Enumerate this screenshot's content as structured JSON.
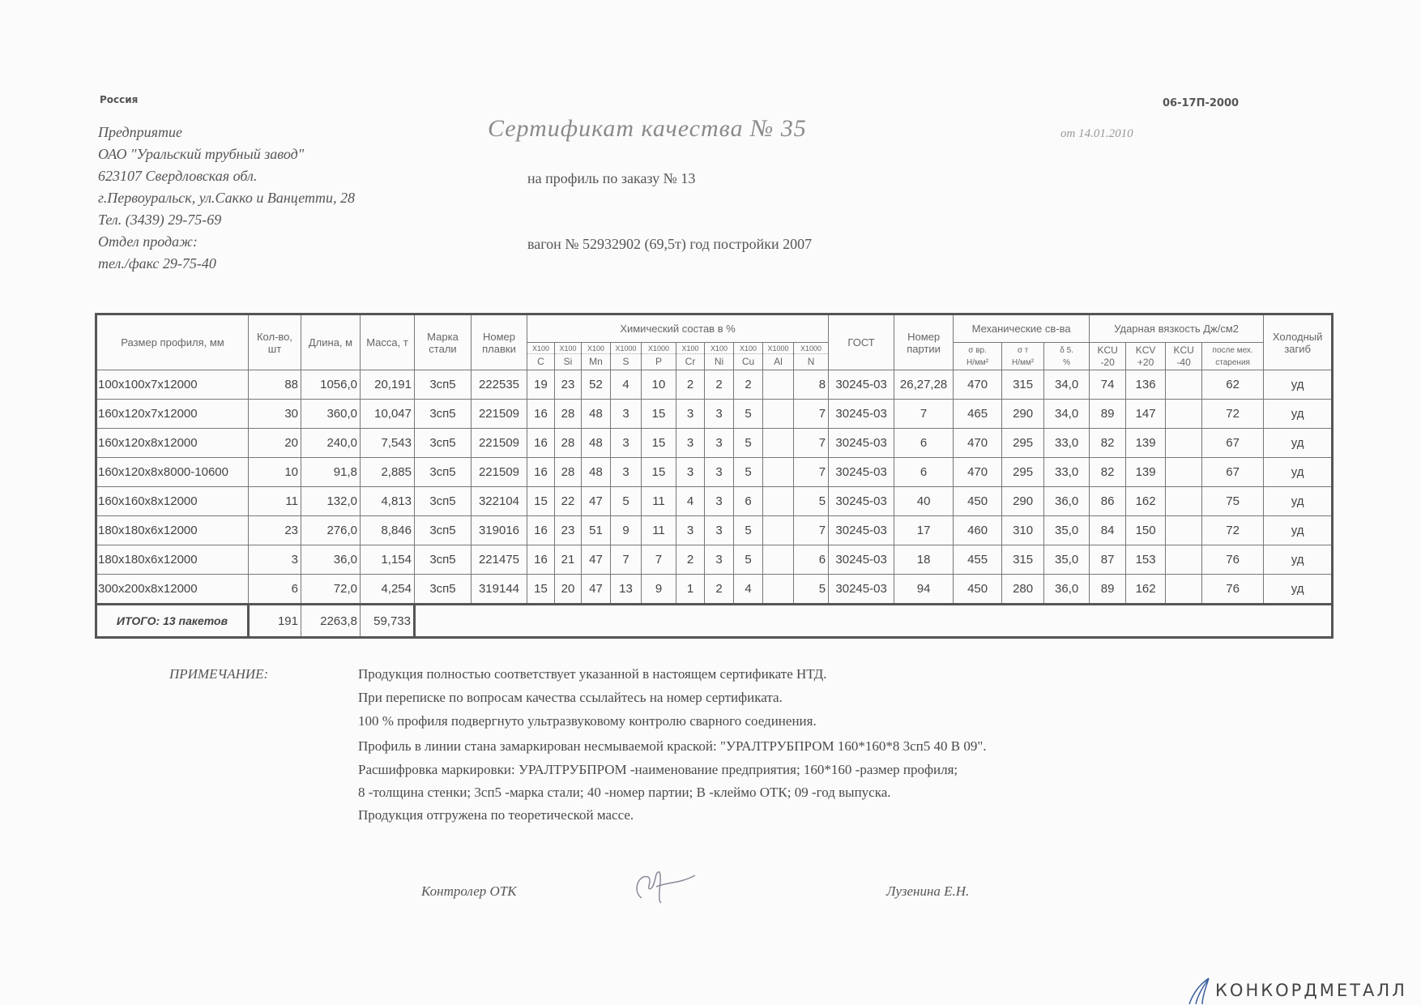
{
  "header": {
    "country": "Россия",
    "form_number": "06-17П-2000",
    "title": "Сертификат качества  № 35",
    "date": "от 14.01.2010",
    "order": "на профиль по заказу № 13",
    "wagon": "вагон № 52932902 (69,5т) год постройки 2007",
    "company_lines": [
      "Предприятие",
      "ОАО \"Уральский трубный завод\"",
      "623107 Свердловская обл.",
      "г.Первоуральск, ул.Сакко и Ванцетти, 28",
      "Тел. (3439) 29-75-69",
      "Отдел продаж:",
      "тел./факс  29-75-40"
    ]
  },
  "table": {
    "headers": {
      "size": "Размер профиля, мм",
      "qty": "Кол-во, шт",
      "length": "Длина, м",
      "mass": "Масса, т",
      "grade": "Марка стали",
      "heat": "Номер плавки",
      "chem": "Химический состав  в %",
      "gost": "ГОСТ",
      "batch": "Номер партии",
      "mech": "Механические св-ва",
      "impact": "Ударная вязкость Дж/см2",
      "bend": "Холодный загиб",
      "chem_cols": [
        {
          "mult": "X100",
          "el": "C"
        },
        {
          "mult": "X100",
          "el": "Si"
        },
        {
          "mult": "X100",
          "el": "Mn"
        },
        {
          "mult": "X1000",
          "el": "S"
        },
        {
          "mult": "X1000",
          "el": "P"
        },
        {
          "mult": "X100",
          "el": "Cr"
        },
        {
          "mult": "X100",
          "el": "Ni"
        },
        {
          "mult": "X100",
          "el": "Cu"
        },
        {
          "mult": "X1000",
          "el": "Al"
        },
        {
          "mult": "X1000",
          "el": "N"
        }
      ],
      "mech_cols": [
        {
          "top": "σ вр.",
          "bot": "Н/мм²"
        },
        {
          "top": "σ т",
          "bot": "Н/мм²"
        },
        {
          "top": "δ 5.",
          "bot": "%"
        }
      ],
      "impact_cols": [
        {
          "top": "KCU",
          "bot": "-20"
        },
        {
          "top": "KCV",
          "bot": "+20"
        },
        {
          "top": "KCU",
          "bot": "-40"
        },
        {
          "top": "после мех.",
          "bot": "старения"
        }
      ]
    },
    "rows": [
      [
        "100x100x7x12000",
        "88",
        "1056,0",
        "20,191",
        "3сп5",
        "222535",
        "19",
        "23",
        "52",
        "4",
        "10",
        "2",
        "2",
        "2",
        "",
        "8",
        "30245-03",
        "26,27,28",
        "470",
        "315",
        "34,0",
        "74",
        "136",
        "",
        "62",
        "уд"
      ],
      [
        "160x120x7x12000",
        "30",
        "360,0",
        "10,047",
        "3сп5",
        "221509",
        "16",
        "28",
        "48",
        "3",
        "15",
        "3",
        "3",
        "5",
        "",
        "7",
        "30245-03",
        "7",
        "465",
        "290",
        "34,0",
        "89",
        "147",
        "",
        "72",
        "уд"
      ],
      [
        "160x120x8x12000",
        "20",
        "240,0",
        "7,543",
        "3сп5",
        "221509",
        "16",
        "28",
        "48",
        "3",
        "15",
        "3",
        "3",
        "5",
        "",
        "7",
        "30245-03",
        "6",
        "470",
        "295",
        "33,0",
        "82",
        "139",
        "",
        "67",
        "уд"
      ],
      [
        "160x120x8x8000-10600",
        "10",
        "91,8",
        "2,885",
        "3сп5",
        "221509",
        "16",
        "28",
        "48",
        "3",
        "15",
        "3",
        "3",
        "5",
        "",
        "7",
        "30245-03",
        "6",
        "470",
        "295",
        "33,0",
        "82",
        "139",
        "",
        "67",
        "уд"
      ],
      [
        "160x160x8x12000",
        "11",
        "132,0",
        "4,813",
        "3сп5",
        "322104",
        "15",
        "22",
        "47",
        "5",
        "11",
        "4",
        "3",
        "6",
        "",
        "5",
        "30245-03",
        "40",
        "450",
        "290",
        "36,0",
        "86",
        "162",
        "",
        "75",
        "уд"
      ],
      [
        "180x180x6x12000",
        "23",
        "276,0",
        "8,846",
        "3сп5",
        "319016",
        "16",
        "23",
        "51",
        "9",
        "11",
        "3",
        "3",
        "5",
        "",
        "7",
        "30245-03",
        "17",
        "460",
        "310",
        "35,0",
        "84",
        "150",
        "",
        "72",
        "уд"
      ],
      [
        "180x180x6x12000",
        "3",
        "36,0",
        "1,154",
        "3сп5",
        "221475",
        "16",
        "21",
        "47",
        "7",
        "7",
        "2",
        "3",
        "5",
        "",
        "6",
        "30245-03",
        "18",
        "455",
        "315",
        "35,0",
        "87",
        "153",
        "",
        "76",
        "уд"
      ],
      [
        "300x200x8x12000",
        "6",
        "72,0",
        "4,254",
        "3сп5",
        "319144",
        "15",
        "20",
        "47",
        "13",
        "9",
        "1",
        "2",
        "4",
        "",
        "5",
        "30245-03",
        "94",
        "450",
        "280",
        "36,0",
        "89",
        "162",
        "",
        "76",
        "уд"
      ]
    ],
    "total": {
      "label": "ИТОГО: 13 пакетов",
      "qty": "191",
      "length": "2263,8",
      "mass": "59,733"
    }
  },
  "notes": {
    "label": "ПРИМЕЧАНИЕ:",
    "lines": [
      "Продукция полностью соответствует указанной в настоящем сертификате НТД.",
      "При переписке по вопросам качества ссылайтесь на номер сертификата.",
      "100 % профиля подвергнуто ультразвуковому контролю сварного соединения.",
      "Профиль в линии стана замаркирован несмываемой краской: \"УРАЛТРУБПРОМ  160*160*8  3сп5  40  В  09\".",
      "Расшифровка маркировки: УРАЛТРУБПРОМ -наименование предприятия; 160*160 -размер профиля;",
      "8 -толщина стенки; 3сп5 -марка стали; 40 -номер партии; В -клеймо ОТК; 09 -год выпуска.",
      "Продукция отгружена по теоретической массе."
    ]
  },
  "signatures": {
    "controller_label": "Контролер ОТК",
    "inspector_name": "Лузенина Е.Н."
  },
  "logo": {
    "text": "КОНКОРДМЕТАЛЛ",
    "color": "#3a5fa0"
  }
}
